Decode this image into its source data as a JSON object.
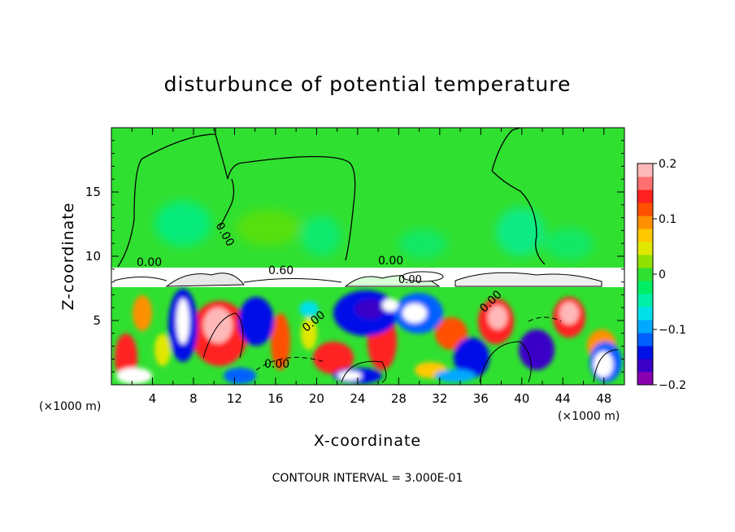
{
  "chart_data": {
    "type": "heatmap",
    "title": "disturbunce of potential temperature",
    "xlabel": "X-coordinate",
    "ylabel": "Z-coordinate",
    "x_unit_label": "(×1000 m)",
    "z_unit_label": "(×1000 m)",
    "xlim": [
      0,
      50
    ],
    "ylim": [
      0,
      20
    ],
    "x_ticks": [
      4,
      8,
      12,
      16,
      20,
      24,
      28,
      32,
      36,
      40,
      44,
      48
    ],
    "x_tick_labels": [
      "4",
      "8",
      "12",
      "16",
      "20",
      "24",
      "28",
      "32",
      "36",
      "40",
      "44",
      "48"
    ],
    "y_ticks": [
      5,
      10,
      15
    ],
    "y_tick_labels": [
      "5",
      "10",
      "15"
    ],
    "colorbar": {
      "min": -0.2,
      "max": 0.2,
      "ticks": [
        0.2,
        0.1,
        0,
        -0.1,
        -0.2
      ],
      "tick_labels": [
        "0.2",
        "0.1",
        "0",
        "−0.1",
        "−0.2"
      ],
      "colors": [
        "#8a00b0",
        "#3a00c8",
        "#0010e8",
        "#0060ff",
        "#00a8ff",
        "#00e0e8",
        "#00f0a8",
        "#00ee66",
        "#30e030",
        "#90e000",
        "#e0e800",
        "#ffc800",
        "#ff9000",
        "#ff5000",
        "#ff2020",
        "#ff7070",
        "#ffb8b8"
      ]
    },
    "contour_labels": [
      {
        "text": "0.00",
        "x": 3.8,
        "z": 9.7
      },
      {
        "text": "0.00",
        "x": 11.2,
        "z": 11.5
      },
      {
        "text": "0.00",
        "x": 27.4,
        "z": 9.6
      },
      {
        "text": "0.60",
        "x": 16.6,
        "z": 8.9
      },
      {
        "text": "0.00",
        "x": 19.5,
        "z": 5.7
      },
      {
        "text": "0.00",
        "x": 16.4,
        "z": 2.1
      },
      {
        "text": "0.00",
        "x": 37.0,
        "z": 6.2
      },
      {
        "text": "0.00",
        "x": 30.0,
        "z": 8.2
      }
    ],
    "contour_interval_text": "CONTOUR INTERVAL = 3.000E-01"
  }
}
